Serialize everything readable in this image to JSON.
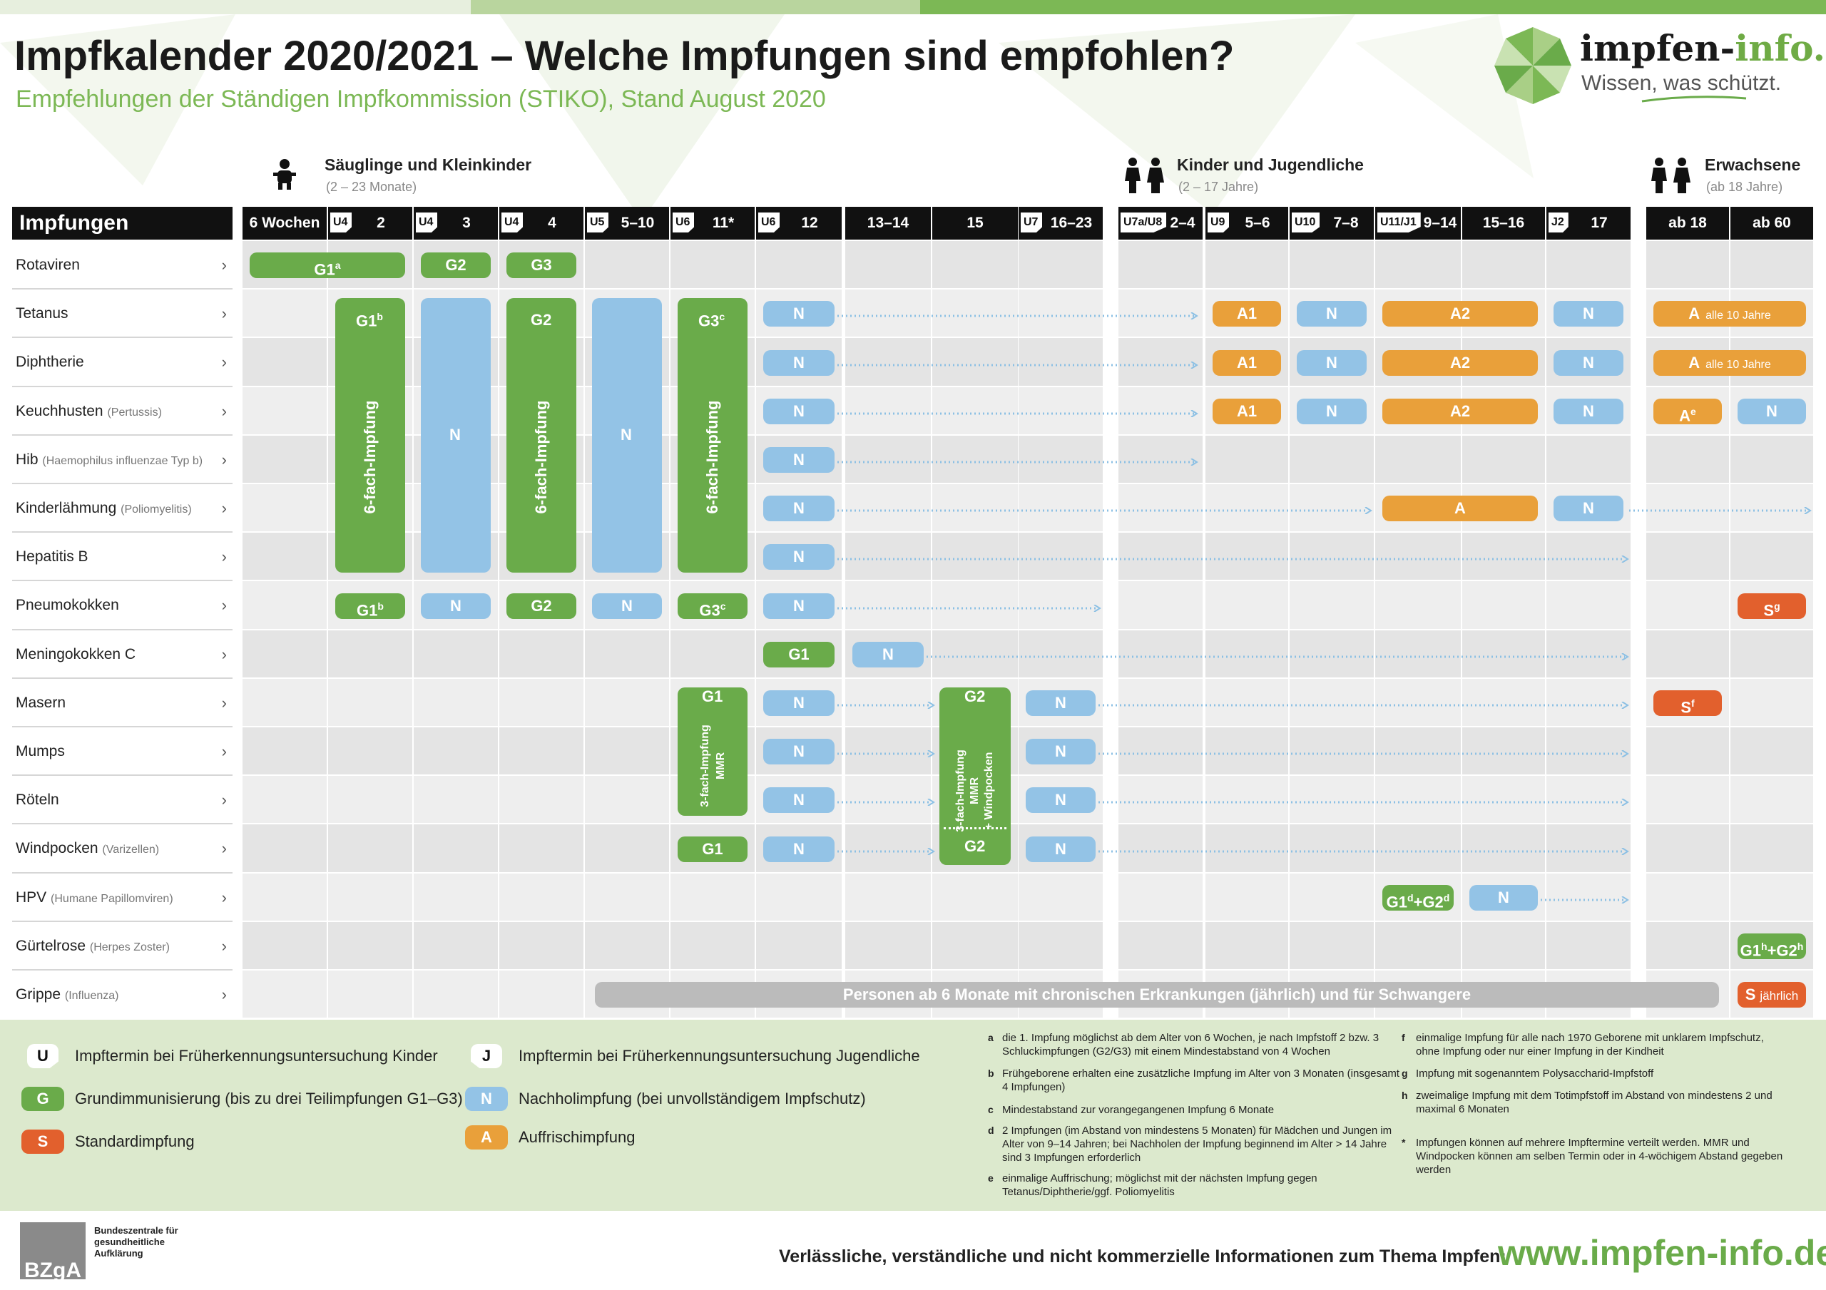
{
  "header": {
    "title": "Impfkalender 2020/2021 – Welche Impfungen sind empfohlen?",
    "subtitle": "Empfehlungen der Ständigen Impfkommission (STIKO), Stand August 2020"
  },
  "logo": {
    "name_part1": "impfen-",
    "name_part2": "info.de",
    "tagline": "Wissen, was schützt.",
    "icon": "umbrella-icon"
  },
  "groups": [
    {
      "title": "Säuglinge und Kleinkinder",
      "sub": "(2 – 23 Monate)",
      "icon": "baby-icon"
    },
    {
      "title": "Kinder und Jugendliche",
      "sub": "(2 – 17 Jahre)",
      "icon": "children-icon"
    },
    {
      "title": "Erwachsene",
      "sub": "(ab 18 Jahre)",
      "icon": "adults-icon"
    }
  ],
  "table_title": "Impfungen",
  "columns": [
    {
      "badge": "",
      "label": "6 Wochen"
    },
    {
      "badge": "U4",
      "label": "2"
    },
    {
      "badge": "U4",
      "label": "3"
    },
    {
      "badge": "U4",
      "label": "4"
    },
    {
      "badge": "U5",
      "label": "5–10"
    },
    {
      "badge": "U6",
      "label": "11*"
    },
    {
      "badge": "U6",
      "label": "12"
    },
    {
      "badge": "",
      "label": "13–14"
    },
    {
      "badge": "",
      "label": "15"
    },
    {
      "badge": "U7",
      "label": "16–23"
    },
    {
      "badge": "U7a/U8",
      "label": "2–4"
    },
    {
      "badge": "U9",
      "label": "5–6"
    },
    {
      "badge": "U10",
      "label": "7–8"
    },
    {
      "badge": "U11/J1",
      "label": "9–14"
    },
    {
      "badge": "",
      "label": "15–16"
    },
    {
      "badge": "J2",
      "label": "17"
    },
    {
      "badge": "",
      "label": "ab 18"
    },
    {
      "badge": "",
      "label": "ab 60"
    }
  ],
  "rows": [
    {
      "name": "Rotaviren",
      "detail": ""
    },
    {
      "name": "Tetanus",
      "detail": ""
    },
    {
      "name": "Diphtherie",
      "detail": ""
    },
    {
      "name": "Keuchhusten",
      "detail": "(Pertussis)"
    },
    {
      "name": "Hib",
      "detail": "(Haemophilus influenzae Typ b)"
    },
    {
      "name": "Kinderlähmung",
      "detail": "(Poliomyelitis)"
    },
    {
      "name": "Hepatitis B",
      "detail": ""
    },
    {
      "name": "Pneumokokken",
      "detail": ""
    },
    {
      "name": "Meningokokken C",
      "detail": ""
    },
    {
      "name": "Masern",
      "detail": ""
    },
    {
      "name": "Mumps",
      "detail": ""
    },
    {
      "name": "Röteln",
      "detail": ""
    },
    {
      "name": "Windpocken",
      "detail": "(Varizellen)"
    },
    {
      "name": "HPV",
      "detail": "(Humane Papillomviren)"
    },
    {
      "name": "Gürtelrose",
      "detail": "(Herpes Zoster)"
    },
    {
      "name": "Grippe",
      "detail": "(Influenza)"
    }
  ],
  "cells": {
    "rota_g1": "G1",
    "rota_g1_sup": "a",
    "rota_g2": "G2",
    "rota_g3": "G3",
    "six_g1": "G1",
    "six_g1_sup": "b",
    "six_g2": "G2",
    "six_g3": "G3",
    "six_g3_sup": "c",
    "six_fach": "6-fach-Impfung",
    "n": "N",
    "a1": "A1",
    "a2": "A2",
    "a": "A",
    "a_10": "A",
    "a_10_note": "alle 10 Jahre",
    "ae": "A",
    "ae_sup": "e",
    "pneu_g1": "G1",
    "pneu_g1_sup": "b",
    "pneu_g2": "G2",
    "pneu_g3": "G3",
    "pneu_g3_sup": "c",
    "pneu_s": "S",
    "pneu_s_sup": "g",
    "men_g1": "G1",
    "mmr_g1": "G1",
    "mmr_text1": "3-fach-Impfung",
    "mmr_text2": "MMR",
    "mmr_g2": "G2",
    "mmrv_text1": "3-fach-Impfung",
    "mmrv_text2": "MMR",
    "mmrv_text3": "+ Windpocken",
    "var_g1": "G1",
    "var_g2": "G2",
    "masern_s": "S",
    "masern_s_sup": "f",
    "hpv_g": "G1",
    "hpv_g_sup1": "d",
    "hpv_g_plus": "+G2",
    "hpv_g_sup2": "d",
    "hz_g": "G1",
    "hz_g_sup1": "h",
    "hz_g_plus": "+G2",
    "hz_g_sup2": "h",
    "grippe_bar": "Personen ab 6 Monate mit chronischen Erkrankungen (jährlich) und für Schwangere",
    "grippe_s": "S",
    "grippe_s_note": "jährlich"
  },
  "legend": [
    {
      "key": "U",
      "text": "Impftermin bei Früherkennungsuntersuchung Kinder",
      "type": "u"
    },
    {
      "key": "G",
      "text": "Grundimmunisierung (bis zu drei Teilimpfungen G1–G3)",
      "type": "g"
    },
    {
      "key": "S",
      "text": "Standardimpfung",
      "type": "s"
    },
    {
      "key": "J",
      "text": "Impftermin bei Früherkennungsuntersuchung Jugendliche",
      "type": "j"
    },
    {
      "key": "N",
      "text": "Nachholimpfung (bei unvollständigem Impfschutz)",
      "type": "n"
    },
    {
      "key": "A",
      "text": "Auffrischimpfung",
      "type": "a"
    }
  ],
  "footnotes": [
    {
      "key": "a",
      "text": "die 1. Impfung möglichst ab dem Alter von 6 Wochen, je nach Impfstoff 2 bzw. 3 Schluckimpfungen (G2/G3) mit einem Mindestabstand von 4 Wochen"
    },
    {
      "key": "b",
      "text": "Frühgeborene erhalten eine zusätzliche Impfung im Alter von 3 Monaten (insgesamt 4 Impfungen)"
    },
    {
      "key": "c",
      "text": "Mindestabstand zur vorangegangenen Impfung 6 Monate"
    },
    {
      "key": "d",
      "text": "2 Impfungen (im Abstand von mindestens 5 Monaten) für Mädchen und Jungen im Alter von 9–14 Jahren; bei Nachholen der Impfung beginnend im Alter > 14 Jahre sind 3 Impfungen erforderlich"
    },
    {
      "key": "e",
      "text": "einmalige Auffrischung; möglichst mit der nächsten Impfung gegen Tetanus/Diphtherie/ggf. Poliomyelitis"
    },
    {
      "key": "f",
      "text": "einmalige Impfung für alle nach 1970 Geborene mit unklarem Impfschutz, ohne Impfung oder nur einer Impfung in der Kindheit"
    },
    {
      "key": "g",
      "text": "Impfung mit sogenanntem Polysaccharid-Impfstoff"
    },
    {
      "key": "h",
      "text": "zweimalige Impfung mit dem Totimpfstoff im Abstand von mindestens 2 und maximal 6 Monaten"
    },
    {
      "key": "*",
      "text": "Impfungen können auf mehrere Impftermine verteilt werden. MMR und Windpocken können am selben Termin oder in 4-wöchigem Abstand gegeben werden"
    }
  ],
  "footer": {
    "org_abbr": "BZgA",
    "org_name": "Bundeszentrale für gesundheitliche Aufklärung",
    "tagline": "Verlässliche, verständliche und nicht kommerzielle Informationen zum Thema Impfen:",
    "url": "www.impfen-info.de"
  },
  "colors": {
    "green": "#6aab4a",
    "blue": "#93c3e6",
    "orange": "#e9a03a",
    "red": "#e2602d",
    "legend_bg": "#dce9cd"
  }
}
